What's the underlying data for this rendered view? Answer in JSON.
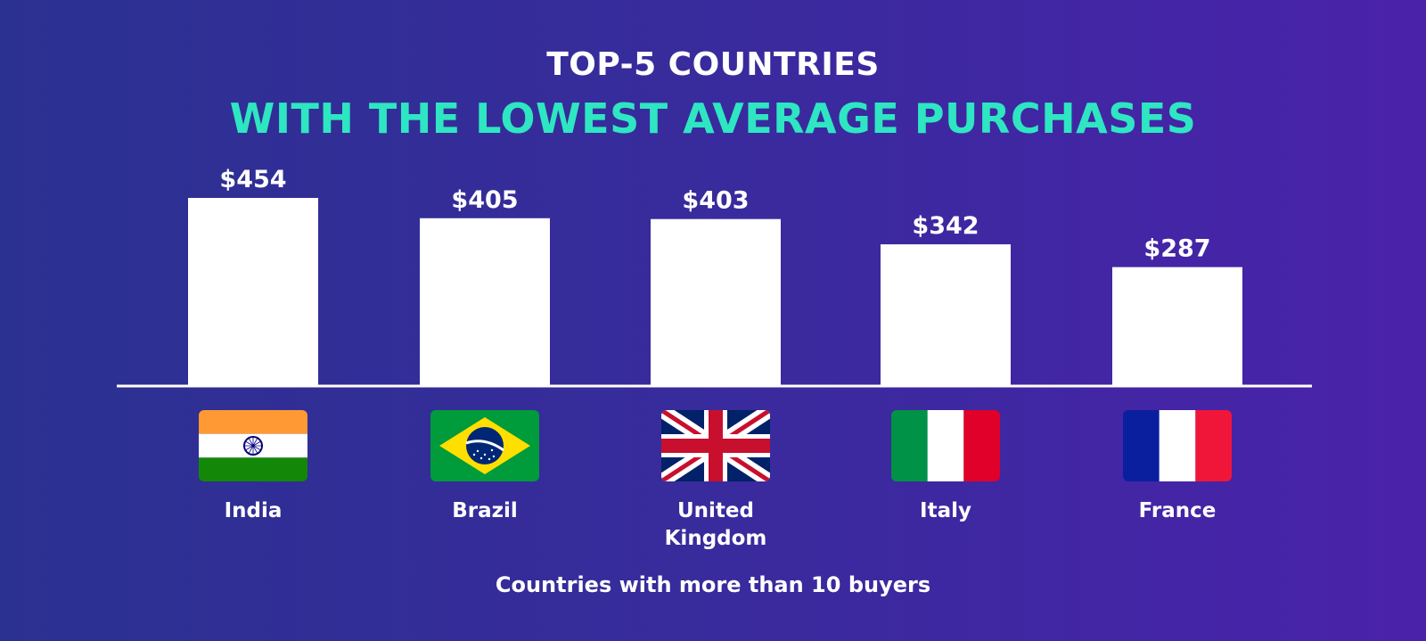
{
  "header": {
    "title": "TOP-5 COUNTRIES",
    "subtitle": "WITH THE LOWEST AVERAGE PURCHASES"
  },
  "footer": {
    "note": "Countries with more than 10 buyers"
  },
  "colors": {
    "background_start": "#2b3191",
    "background_end": "#4a22aa",
    "accent": "#2ee6c2",
    "bar": "#ffffff",
    "text": "#ffffff"
  },
  "chart_data": {
    "type": "bar",
    "title": "TOP-5 COUNTRIES WITH THE LOWEST AVERAGE PURCHASES",
    "categories": [
      [
        "India"
      ],
      [
        "Brazil"
      ],
      [
        "United",
        "Kingdom"
      ],
      [
        "Italy"
      ],
      [
        "France"
      ]
    ],
    "values": [
      454,
      405,
      403,
      342,
      287
    ],
    "data_labels": [
      "$454",
      "$405",
      "$403",
      "$342",
      "$287"
    ],
    "flags": [
      "india-flag-icon",
      "brazil-flag-icon",
      "united-kingdom-flag-icon",
      "italy-flag-icon",
      "france-flag-icon"
    ],
    "ylim": [
      0,
      454
    ],
    "grid": false,
    "legend": "none",
    "xlabel": "",
    "ylabel": ""
  }
}
